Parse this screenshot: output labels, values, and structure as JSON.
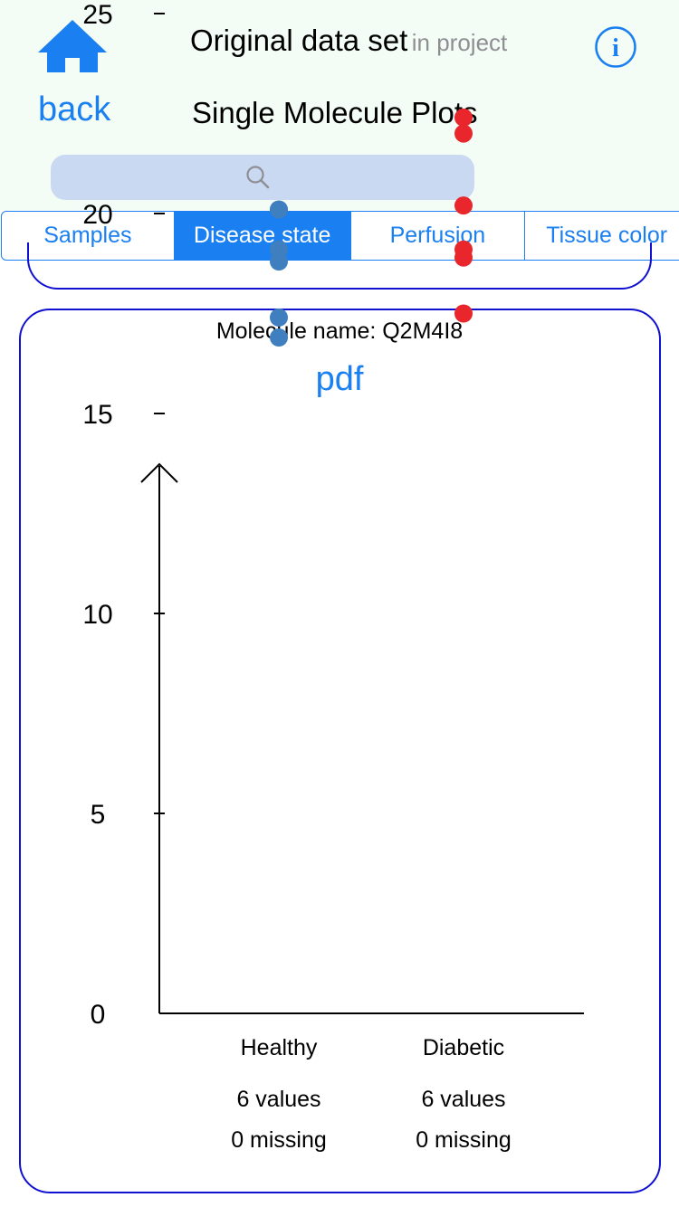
{
  "header": {
    "title": "Original data set",
    "title_suffix": "in project",
    "subtitle": "Single Molecule Plots",
    "back_label": "back",
    "icons": {
      "home": "home-icon",
      "info": "info-icon",
      "search": "search-icon"
    },
    "search": {
      "value": "",
      "placeholder": ""
    }
  },
  "tabs": [
    {
      "label": "Samples",
      "active": false
    },
    {
      "label": "Disease state",
      "active": true
    },
    {
      "label": "Perfusion",
      "active": false
    },
    {
      "label": "Tissue color",
      "active": false
    }
  ],
  "colors": {
    "accent": "#1a7ff0",
    "header_bg": "#f3fdf6",
    "card_border": "#1010d0",
    "search_bg": "#c9d9f2"
  },
  "card": {
    "molecule_label": "Molecule name: Q2M4I8",
    "link": "pdf"
  },
  "chart_data": {
    "type": "scatter",
    "ylim": [
      0,
      27
    ],
    "yticks": [
      0,
      5,
      10,
      15,
      20,
      25
    ],
    "categories": [
      "Healthy",
      "Diabetic"
    ],
    "series": [
      {
        "category": "Healthy",
        "color": "#3f7fbf",
        "values": [
          16.9,
          17.4,
          18.8,
          19.1,
          20.1,
          20.1
        ],
        "count_label": "6 values",
        "missing_label": "0 missing"
      },
      {
        "category": "Diabetic",
        "color": "#e8262b",
        "values": [
          17.5,
          18.9,
          19.1,
          20.2,
          22.0,
          22.4
        ],
        "count_label": "6 values",
        "missing_label": "0 missing"
      }
    ]
  }
}
